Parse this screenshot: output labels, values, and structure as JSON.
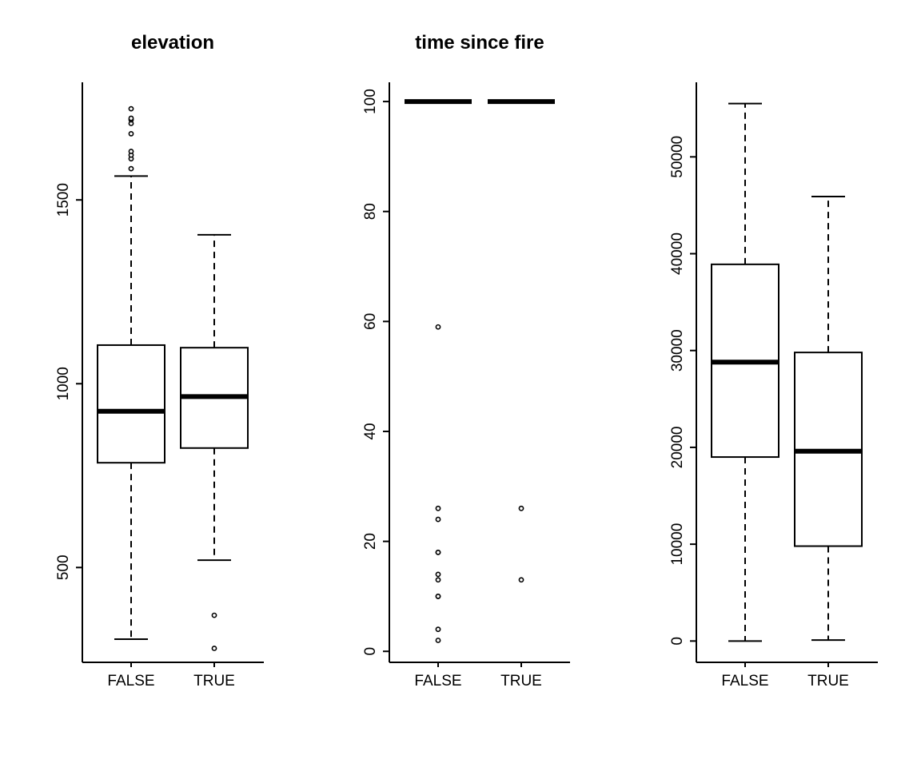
{
  "chart_data": [
    {
      "type": "boxplot",
      "title": "elevation",
      "categories": [
        "FALSE",
        "TRUE"
      ],
      "ylim": [
        242,
        1820
      ],
      "yticks": [
        500,
        1000,
        1500
      ],
      "grid": false,
      "boxes": [
        {
          "category": "FALSE",
          "whisker_low": 305,
          "q1": 785,
          "median": 925,
          "q3": 1105,
          "whisker_high": 1565,
          "outliers": [
            1585,
            1612,
            1622,
            1632,
            1680,
            1708,
            1718,
            1722,
            1748
          ]
        },
        {
          "category": "TRUE",
          "whisker_low": 520,
          "q1": 825,
          "median": 965,
          "q3": 1098,
          "whisker_high": 1405,
          "outliers": [
            370,
            280
          ]
        }
      ]
    },
    {
      "type": "boxplot",
      "title": "time since fire",
      "categories": [
        "FALSE",
        "TRUE"
      ],
      "ylim": [
        -2,
        103.5
      ],
      "yticks": [
        0,
        20,
        40,
        60,
        80,
        100
      ],
      "grid": false,
      "boxes": [
        {
          "category": "FALSE",
          "whisker_low": 100,
          "q1": 100,
          "median": 100,
          "q3": 100,
          "whisker_high": 100,
          "outliers": [
            59,
            26,
            24,
            18,
            18,
            14,
            13,
            10,
            10,
            4,
            2
          ]
        },
        {
          "category": "TRUE",
          "whisker_low": 100,
          "q1": 100,
          "median": 100,
          "q3": 100,
          "whisker_high": 100,
          "outliers": [
            26,
            13
          ]
        }
      ]
    },
    {
      "type": "boxplot",
      "title": "",
      "categories": [
        "FALSE",
        "TRUE"
      ],
      "ylim": [
        -2200,
        57700
      ],
      "yticks": [
        0,
        10000,
        20000,
        30000,
        40000,
        50000
      ],
      "grid": false,
      "boxes": [
        {
          "category": "FALSE",
          "whisker_low": 0,
          "q1": 19000,
          "median": 28800,
          "q3": 38900,
          "whisker_high": 55500,
          "outliers": []
        },
        {
          "category": "TRUE",
          "whisker_low": 100,
          "q1": 9800,
          "median": 19600,
          "q3": 29800,
          "whisker_high": 45900,
          "outliers": []
        }
      ]
    }
  ]
}
